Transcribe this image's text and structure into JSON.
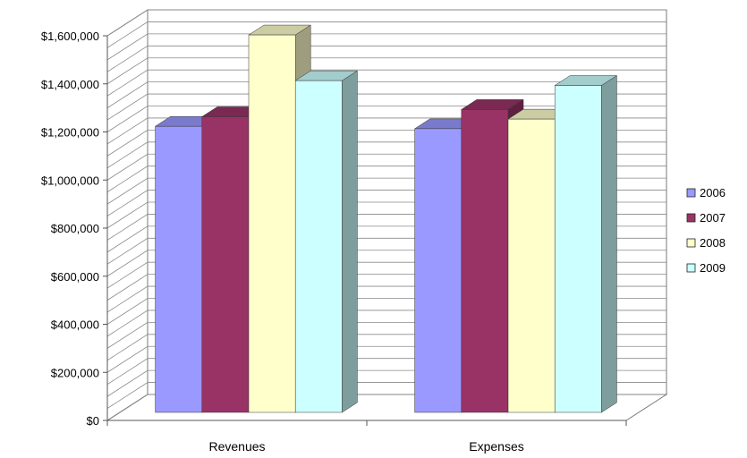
{
  "chart_data": {
    "type": "bar",
    "categories": [
      "Revenues",
      "Expenses"
    ],
    "series": [
      {
        "name": "2006",
        "values": [
          1190000,
          1180000
        ],
        "color": "#9999FF"
      },
      {
        "name": "2007",
        "values": [
          1230000,
          1260000
        ],
        "color": "#993366"
      },
      {
        "name": "2008",
        "values": [
          1570000,
          1220000
        ],
        "color": "#FFFFCC"
      },
      {
        "name": "2009",
        "values": [
          1380000,
          1360000
        ],
        "color": "#CCFFFF"
      }
    ],
    "y_ticks": [
      "$0",
      "$200,000",
      "$400,000",
      "$600,000",
      "$800,000",
      "$1,000,000",
      "$1,200,000",
      "$1,400,000",
      "$1,600,000"
    ],
    "ylim": [
      0,
      1600000
    ],
    "grid": "horizontal-major-and-minor",
    "legend_position": "right",
    "title": "",
    "xlabel": "",
    "ylabel": ""
  }
}
